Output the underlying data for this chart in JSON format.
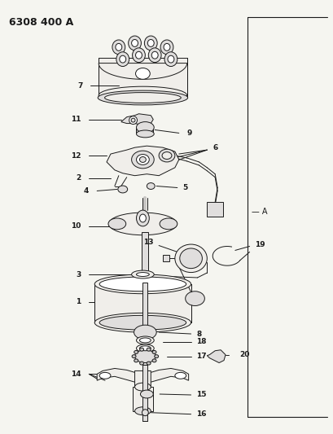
{
  "title": "6308 400 A",
  "bg_color": "#f5f5f0",
  "line_color": "#1a1a1a",
  "title_fontsize": 9,
  "label_fontsize": 6.5,
  "fig_width": 4.1,
  "fig_height": 5.33,
  "dpi": 100
}
